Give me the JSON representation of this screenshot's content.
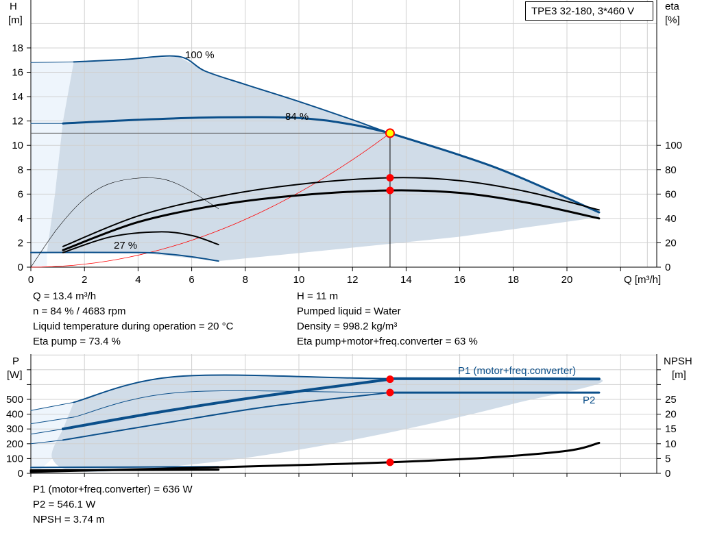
{
  "title_box": "TPE3 32-180, 3*460 V",
  "colors": {
    "curve_blue": "#0b4f8a",
    "region": "#d0dce8",
    "region_light": "#eef5fc",
    "duty_point": "#ff0000",
    "system_curve": "#ff0000",
    "duty_highlight": "#ffff00"
  },
  "chart_data": [
    {
      "type": "line",
      "xlabel": "Q [m³/h]",
      "ylabel_left": "H",
      "ylabel_left_unit": "[m]",
      "ylabel_right": "eta",
      "ylabel_right_unit": "[%]",
      "xlim": [
        0,
        23
      ],
      "ylim": [
        0,
        22
      ],
      "ylim_right": [
        0,
        220
      ],
      "grid": true,
      "xticks": [
        0,
        2,
        4,
        6,
        8,
        10,
        12,
        14,
        16,
        18,
        20
      ],
      "yticks": [
        0,
        2,
        4,
        6,
        8,
        10,
        12,
        14,
        16,
        18
      ],
      "yticks_right": [
        0,
        20,
        40,
        60,
        80,
        100
      ],
      "annotations": [
        "100 %",
        "84 %",
        "27 %"
      ],
      "series": [
        {
          "key": "head_100",
          "label": "100 %",
          "points": [
            [
              0,
              16.8
            ],
            [
              1.6,
              16.85
            ],
            [
              3.5,
              17.05
            ],
            [
              5.5,
              17.3
            ],
            [
              6.5,
              16.1
            ],
            [
              8,
              15
            ],
            [
              10,
              13.6
            ],
            [
              12,
              12.1
            ],
            [
              13.4,
              11
            ],
            [
              16,
              9.2
            ],
            [
              18,
              7.6
            ],
            [
              21.2,
              4.5
            ]
          ]
        },
        {
          "key": "head_84",
          "label": "84 %",
          "points": [
            [
              0,
              11.8
            ],
            [
              1.2,
              11.8
            ],
            [
              4,
              12.1
            ],
            [
              7,
              12.3
            ],
            [
              10,
              12.25
            ],
            [
              12,
              11.7
            ],
            [
              13.4,
              11
            ]
          ]
        },
        {
          "key": "head_27",
          "label": "27 %",
          "points": [
            [
              0,
              1.2
            ],
            [
              4,
              1.2
            ],
            [
              5,
              1.1
            ],
            [
              6,
              0.85
            ],
            [
              7,
              0.5
            ]
          ]
        },
        {
          "key": "eta_pump_100",
          "points": [
            [
              1.2,
              1.7
            ],
            [
              4,
              4.2
            ],
            [
              7,
              5.8
            ],
            [
              10,
              6.8
            ],
            [
              13.4,
              7.34
            ],
            [
              16,
              7.1
            ],
            [
              18.5,
              6.2
            ],
            [
              21.2,
              4.7
            ]
          ]
        },
        {
          "key": "eta_total_100",
          "points": [
            [
              1.2,
              1.4
            ],
            [
              4,
              3.7
            ],
            [
              7,
              5.1
            ],
            [
              10,
              5.9
            ],
            [
              13.4,
              6.3
            ],
            [
              16,
              6.1
            ],
            [
              18.5,
              5.3
            ],
            [
              21.2,
              4.0
            ]
          ]
        },
        {
          "key": "eta_pump_27",
          "points": [
            [
              0,
              0
            ],
            [
              1,
              3.2
            ],
            [
              2,
              5.6
            ],
            [
              3,
              6.9
            ],
            [
              4.4,
              7.34
            ],
            [
              5.5,
              6.8
            ],
            [
              7,
              4.8
            ]
          ]
        },
        {
          "key": "eta_total_27",
          "points": [
            [
              1.2,
              1.2
            ],
            [
              3,
              2.5
            ],
            [
              4.8,
              2.9
            ],
            [
              6,
              2.6
            ],
            [
              7,
              1.85
            ]
          ]
        },
        {
          "key": "system_curve",
          "formula": "H = 11·(Q/13.4)²"
        }
      ],
      "duty_point": {
        "Q": 13.4,
        "H": 11,
        "eta_pump": 73.4,
        "eta_total": 63
      }
    },
    {
      "type": "line",
      "ylabel_left": "P",
      "ylabel_left_unit": "[W]",
      "ylabel_right": "NPSH",
      "ylabel_right_unit": "[m]",
      "xlim": [
        0,
        23
      ],
      "ylim": [
        0,
        800
      ],
      "ylim_right": [
        0,
        40
      ],
      "grid": true,
      "yticks": [
        0,
        100,
        200,
        300,
        400,
        500
      ],
      "yticks_right": [
        0,
        5,
        10,
        15,
        20,
        25
      ],
      "legend": [
        "P1 (motor+freq.converter)",
        "P2"
      ],
      "series": [
        {
          "key": "p1_100",
          "points": [
            [
              0,
              425
            ],
            [
              1.6,
              480
            ],
            [
              5.5,
              655
            ],
            [
              13.4,
              640
            ],
            [
              21.2,
              638
            ]
          ]
        },
        {
          "key": "p2_100",
          "points": [
            [
              0,
              335
            ],
            [
              1.6,
              380
            ],
            [
              5.5,
              546
            ],
            [
              13.4,
              546
            ],
            [
              21.2,
              546
            ]
          ]
        },
        {
          "key": "p1_84",
          "points": [
            [
              0,
              265
            ],
            [
              1.2,
              300
            ],
            [
              5,
              420
            ],
            [
              9,
              530
            ],
            [
              13.4,
              636
            ],
            [
              21.2,
              636
            ]
          ]
        },
        {
          "key": "p2_84",
          "points": [
            [
              0,
              200
            ],
            [
              1.2,
              225
            ],
            [
              5,
              340
            ],
            [
              9,
              455
            ],
            [
              13.4,
              546
            ]
          ]
        },
        {
          "key": "npsh",
          "points": [
            [
              0,
              0.5
            ],
            [
              5,
              1.6
            ],
            [
              10,
              2.8
            ],
            [
              13.4,
              3.74
            ],
            [
              17,
              5.3
            ],
            [
              20,
              7.6
            ],
            [
              21.2,
              10.3
            ]
          ]
        }
      ],
      "duty_point": {
        "Q": 13.4,
        "P1": 636,
        "P2": 546.1,
        "NPSH": 3.74
      }
    }
  ],
  "readout": {
    "q": "Q = 13.4 m³/h",
    "n": "n = 84 % / 4683 rpm",
    "temp": "Liquid temperature during operation = 20 °C",
    "eta_pump": "Eta pump = 73.4 %",
    "h": "H = 11 m",
    "liquid": "Pumped liquid = Water",
    "density": "Density = 998.2 kg/m³",
    "eta_total": "Eta pump+motor+freq.converter = 63 %",
    "p1": "P1 (motor+freq.converter) = 636 W",
    "p2": "P2 = 546.1 W",
    "npsh": "NPSH = 3.74 m"
  }
}
